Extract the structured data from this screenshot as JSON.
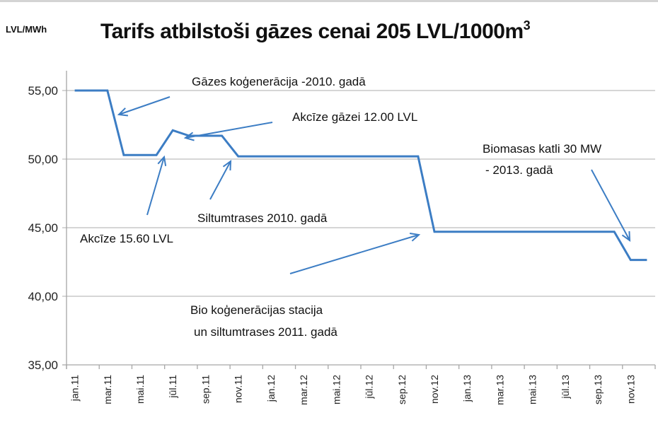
{
  "chart_data": {
    "type": "line",
    "title": "Tarifs atbilstoši gāzes cenai 205 LVL/1000m",
    "title_superscript": "3",
    "ylabel": "LVL/MWh",
    "xlabel": "",
    "ylim": [
      35,
      55
    ],
    "yticks": [
      "55,00",
      "50,00",
      "45,00",
      "40,00",
      "35,00"
    ],
    "ytick_values": [
      55,
      50,
      45,
      40,
      35
    ],
    "grid": true,
    "legend": null,
    "categories": [
      "jan.11",
      "mar.11",
      "mai.11",
      "jūl.11",
      "sep.11",
      "nov.11",
      "jan.12",
      "mar.12",
      "mai.12",
      "jūl.12",
      "sep.12",
      "nov.12",
      "jan.13",
      "mar.13",
      "mai.13",
      "jūl.13",
      "sep.13",
      "nov.13"
    ],
    "series": [
      {
        "name": "Tarifs",
        "color": "#3c7dc4",
        "x": [
          "jan.11",
          "mar.11",
          "apr.11",
          "jūn.11",
          "jūl.11",
          "aug.11",
          "okt.11",
          "nov.11",
          "okt.12",
          "nov.12",
          "okt.13",
          "nov.13",
          "dec.13"
        ],
        "values": [
          55.0,
          55.0,
          50.3,
          50.3,
          52.1,
          51.7,
          51.7,
          50.2,
          50.2,
          44.7,
          44.7,
          42.65,
          42.65
        ]
      }
    ],
    "annotations": [
      {
        "text": "Gāzes koģenerācija -2010. gadā",
        "points_to": "mar.11-apr.11 drop"
      },
      {
        "text": "Akcīze gāzei 12.00 LVL",
        "points_to": "aug.11"
      },
      {
        "text": "Akcīze 15.60 LVL",
        "points_to": "jūn.11"
      },
      {
        "text": "Siltumtrases 2010. gadā",
        "points_to": "nov.11"
      },
      {
        "text": "Bio  koģenerācijas stacija",
        "text2": "un siltumtrases 2011. gadā",
        "points_to": "nov.12"
      },
      {
        "text": "Biomasas katli 30 MW",
        "text2": "- 2013. gadā",
        "points_to": "nov.13"
      }
    ]
  },
  "header": {
    "unit": "LVL/MWh",
    "title": "Tarifs atbilstoši gāzes cenai 205 LVL/1000m",
    "title_sup": "3"
  }
}
